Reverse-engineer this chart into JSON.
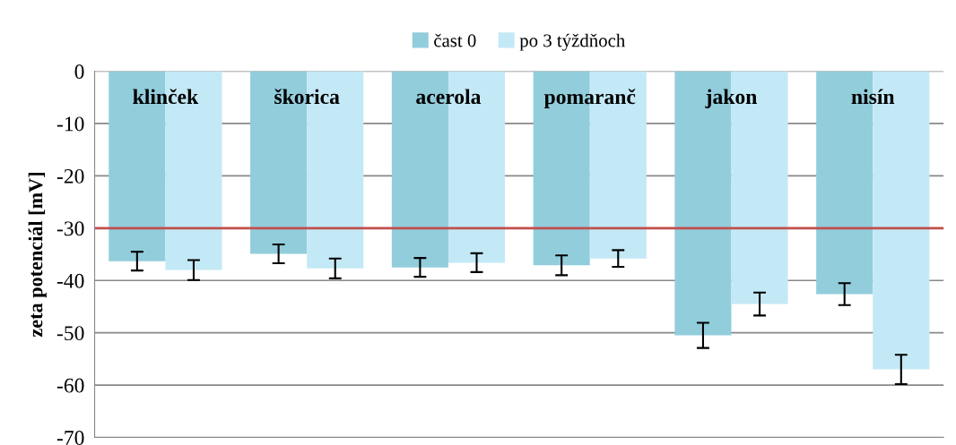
{
  "chart_data": {
    "type": "bar",
    "ylabel": "zeta potenciál [mV]",
    "categories": [
      "klinček",
      "škorica",
      "acerola",
      "pomaranč",
      "jakon",
      "nisín"
    ],
    "series": [
      {
        "name": "čast 0",
        "color": "#92cddc",
        "values": [
          -36.3,
          -34.9,
          -37.5,
          -37.1,
          -50.5,
          -42.6
        ],
        "errors": [
          1.8,
          1.8,
          1.8,
          1.9,
          2.4,
          2.1
        ]
      },
      {
        "name": "po 3 týždňoch",
        "color": "#c4e9f6",
        "values": [
          -38.0,
          -37.7,
          -36.6,
          -35.8,
          -44.5,
          -57.0
        ],
        "errors": [
          1.9,
          1.9,
          1.8,
          1.6,
          2.2,
          2.8
        ]
      }
    ],
    "ylim": [
      -70,
      0
    ],
    "yticks": [
      -70,
      -60,
      -50,
      -40,
      -30,
      -20,
      -10,
      0
    ],
    "ref_lines": [
      {
        "axis": "y",
        "value": -30,
        "color": "#c0504d"
      }
    ],
    "grid": "y",
    "legend": "top"
  }
}
